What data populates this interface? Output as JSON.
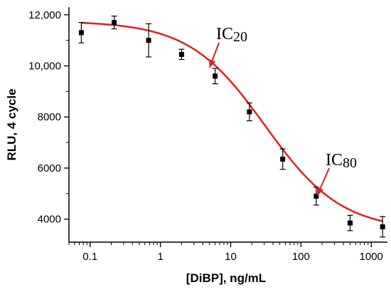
{
  "chart_data": {
    "type": "scatter",
    "title": "",
    "xlabel": "[DiBP], ng/mL",
    "ylabel": "RLU, 4 cycle",
    "x_scale": "log",
    "xlim": [
      0.05,
      1700
    ],
    "ylim": [
      3100,
      12300
    ],
    "x_ticks": [
      0.1,
      1,
      10,
      100,
      1000
    ],
    "x_tick_labels": [
      "0.1",
      "1",
      "10",
      "100",
      "1000"
    ],
    "y_ticks": [
      4000,
      6000,
      8000,
      10000,
      12000
    ],
    "y_tick_labels": [
      "4000",
      "6000",
      "8000",
      "10,000",
      "12,000"
    ],
    "grid": false,
    "legend": "none",
    "colors": {
      "fit": "#e0201c",
      "points": "#000000",
      "arrow": "#e0201c"
    },
    "series": [
      {
        "kind": "points-with-error",
        "points": [
          {
            "x": 0.075,
            "y": 11300,
            "err": 400
          },
          {
            "x": 0.22,
            "y": 11700,
            "err": 250
          },
          {
            "x": 0.68,
            "y": 11000,
            "err": 650
          },
          {
            "x": 2.0,
            "y": 10450,
            "err": 200
          },
          {
            "x": 6.0,
            "y": 9600,
            "err": 300
          },
          {
            "x": 18.5,
            "y": 8200,
            "err": 350
          },
          {
            "x": 55,
            "y": 6350,
            "err": 400
          },
          {
            "x": 165,
            "y": 4900,
            "err": 350
          },
          {
            "x": 500,
            "y": 3850,
            "err": 300
          },
          {
            "x": 1450,
            "y": 3700,
            "err": 400
          }
        ]
      },
      {
        "kind": "fit-curve",
        "top": 11750,
        "bottom": 3560,
        "ic50": 31,
        "hill": 0.8
      }
    ],
    "annotations": [
      {
        "main": "IC",
        "sub": "20",
        "x": 5.0,
        "y": 9930
      },
      {
        "main": "IC",
        "sub": "80",
        "x": 170,
        "y": 4920
      }
    ]
  }
}
